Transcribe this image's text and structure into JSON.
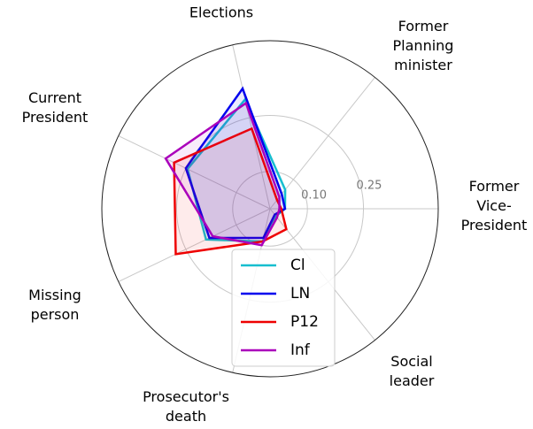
{
  "chart_data": {
    "type": "radar",
    "categories": [
      "Former\nVice-\nPresident",
      "Former\nPlanning\nminister",
      "Elections",
      "Current\nPresident",
      "Missing\nperson",
      "Prosecutor's\ndeath",
      "Social\nleader"
    ],
    "series": [
      {
        "name": "Cl",
        "color": "#17becf",
        "values": [
          0.04,
          0.065,
          0.3,
          0.245,
          0.19,
          0.09,
          0.025
        ]
      },
      {
        "name": "LN",
        "color": "#0000ee",
        "values": [
          0.04,
          0.05,
          0.33,
          0.25,
          0.18,
          0.08,
          0.02
        ]
      },
      {
        "name": "P12",
        "color": "#ee0000",
        "values": [
          0.03,
          0.03,
          0.22,
          0.285,
          0.28,
          0.09,
          0.07
        ]
      },
      {
        "name": "Inf",
        "color": "#aa00bb",
        "values": [
          0.025,
          0.04,
          0.29,
          0.31,
          0.17,
          0.1,
          0.03
        ]
      }
    ],
    "ylim": [
      0,
      0.45
    ],
    "yticks": [
      {
        "value": 0.1,
        "label": "0.10"
      },
      {
        "value": 0.25,
        "label": "0.25"
      }
    ],
    "grid": true,
    "legend": "lower center"
  }
}
